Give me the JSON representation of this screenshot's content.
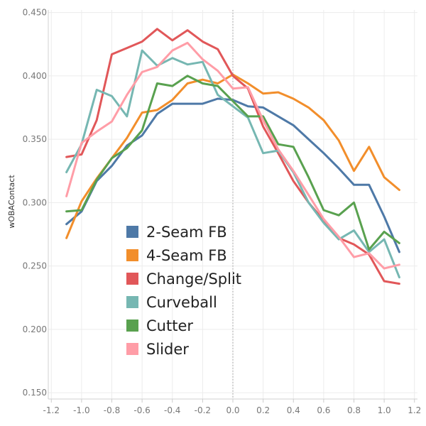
{
  "chart_data": {
    "type": "line",
    "title": "",
    "xlabel": "",
    "ylabel": "wOBAContact",
    "xlim": [
      -1.22,
      1.22
    ],
    "ylim": [
      0.145,
      0.452
    ],
    "x_ticks": [
      "-1.2",
      "-1.0",
      "-0.8",
      "-0.6",
      "-0.4",
      "-0.2",
      "0.0",
      "0.2",
      "0.4",
      "0.6",
      "0.8",
      "1.0",
      "1.2"
    ],
    "x_tick_values": [
      -1.2,
      -1.0,
      -0.8,
      -0.6,
      -0.4,
      -0.2,
      0.0,
      0.2,
      0.4,
      0.6,
      0.8,
      1.0,
      1.2
    ],
    "y_ticks": [
      "0.150",
      "0.200",
      "0.250",
      "0.300",
      "0.350",
      "0.400",
      "0.450"
    ],
    "y_tick_values": [
      0.15,
      0.2,
      0.25,
      0.3,
      0.35,
      0.4,
      0.45
    ],
    "grid": true,
    "reference_line_x": 0.0,
    "legend_position": "lower-left-inside",
    "x": [
      -1.1,
      -1.0,
      -0.9,
      -0.8,
      -0.7,
      -0.6,
      -0.5,
      -0.4,
      -0.3,
      -0.2,
      -0.1,
      0.0,
      0.1,
      0.2,
      0.3,
      0.4,
      0.5,
      0.6,
      0.7,
      0.8,
      0.9,
      1.0,
      1.1
    ],
    "series": [
      {
        "name": "2-Seam FB",
        "color": "#4e79a7",
        "values": [
          0.283,
          0.293,
          0.317,
          0.329,
          0.345,
          0.353,
          0.37,
          0.378,
          0.378,
          0.378,
          0.382,
          0.381,
          0.376,
          0.375,
          0.368,
          0.361,
          0.35,
          0.339,
          0.327,
          0.314,
          0.314,
          0.289,
          0.261
        ]
      },
      {
        "name": "4-Seam FB",
        "color": "#f28e2b",
        "values": [
          0.272,
          0.301,
          0.319,
          0.335,
          0.351,
          0.371,
          0.373,
          0.381,
          0.394,
          0.397,
          0.394,
          0.401,
          0.394,
          0.386,
          0.387,
          0.382,
          0.375,
          0.365,
          0.349,
          0.325,
          0.344,
          0.32,
          0.31
        ]
      },
      {
        "name": "Change/Split",
        "color": "#e15759",
        "values": [
          0.336,
          0.338,
          0.365,
          0.417,
          0.422,
          0.427,
          0.437,
          0.428,
          0.436,
          0.427,
          0.421,
          0.4,
          0.39,
          0.36,
          0.339,
          0.317,
          0.3,
          0.286,
          0.272,
          0.267,
          0.259,
          0.238,
          0.236
        ]
      },
      {
        "name": "Curveball",
        "color": "#76b7b2",
        "values": [
          0.324,
          0.346,
          0.389,
          0.384,
          0.368,
          0.42,
          0.408,
          0.414,
          0.409,
          0.411,
          0.385,
          0.376,
          0.367,
          0.339,
          0.341,
          0.324,
          0.3,
          0.284,
          0.271,
          0.278,
          0.261,
          0.271,
          0.241
        ]
      },
      {
        "name": "Cutter",
        "color": "#59a14f",
        "values": [
          0.293,
          0.294,
          0.318,
          0.335,
          0.343,
          0.357,
          0.394,
          0.392,
          0.4,
          0.394,
          0.392,
          0.38,
          0.368,
          0.368,
          0.346,
          0.344,
          0.32,
          0.294,
          0.29,
          0.3,
          0.263,
          0.277,
          0.268
        ]
      },
      {
        "name": "Slider",
        "color": "#ff9da7",
        "values": [
          0.305,
          0.347,
          0.356,
          0.364,
          0.385,
          0.403,
          0.407,
          0.42,
          0.426,
          0.413,
          0.404,
          0.39,
          0.391,
          0.365,
          0.342,
          0.325,
          0.306,
          0.287,
          0.273,
          0.257,
          0.26,
          0.248,
          0.251
        ]
      }
    ]
  }
}
